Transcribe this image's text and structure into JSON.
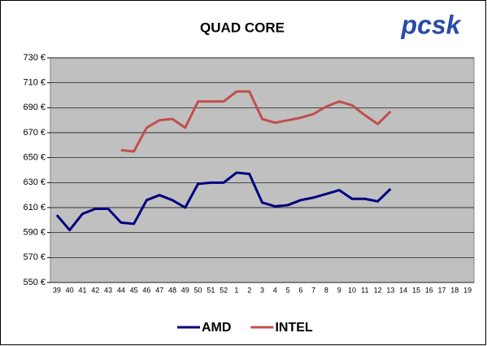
{
  "chart_data": {
    "type": "line",
    "title": "QUAD CORE",
    "logo": "pcsk",
    "categories": [
      39,
      40,
      41,
      42,
      43,
      44,
      45,
      46,
      47,
      48,
      49,
      50,
      51,
      52,
      1,
      2,
      3,
      4,
      5,
      6,
      7,
      8,
      9,
      10,
      11,
      12,
      13,
      14,
      15,
      16,
      17,
      18,
      19
    ],
    "series": [
      {
        "name": "AMD",
        "color": "#000080",
        "values": [
          604,
          592,
          605,
          609,
          609,
          598,
          597,
          616,
          620,
          616,
          610,
          629,
          630,
          630,
          638,
          637,
          614,
          611,
          612,
          616,
          618,
          621,
          624,
          617,
          617,
          615,
          625,
          null,
          null,
          null,
          null,
          null,
          null
        ]
      },
      {
        "name": "INTEL",
        "color": "#c0504d",
        "values": [
          null,
          null,
          null,
          null,
          null,
          656,
          655,
          674,
          680,
          681,
          674,
          695,
          695,
          695,
          703,
          703,
          681,
          678,
          680,
          682,
          685,
          691,
          695,
          692,
          684,
          677,
          687,
          null,
          null,
          null,
          null,
          null,
          null
        ]
      }
    ],
    "ylim": [
      550,
      730
    ],
    "yticks": [
      {
        "value": 550,
        "label": "550 €"
      },
      {
        "value": 570,
        "label": "570 €"
      },
      {
        "value": 590,
        "label": "590 €"
      },
      {
        "value": 610,
        "label": "610 €"
      },
      {
        "value": 630,
        "label": "630 €"
      },
      {
        "value": 650,
        "label": "650 €"
      },
      {
        "value": 670,
        "label": "670 €"
      },
      {
        "value": 690,
        "label": "690 €"
      },
      {
        "value": 710,
        "label": "710 €"
      },
      {
        "value": 730,
        "label": "730 €"
      }
    ],
    "grid": true,
    "plot_background": "#c0c0c0",
    "legend": "bottom"
  }
}
